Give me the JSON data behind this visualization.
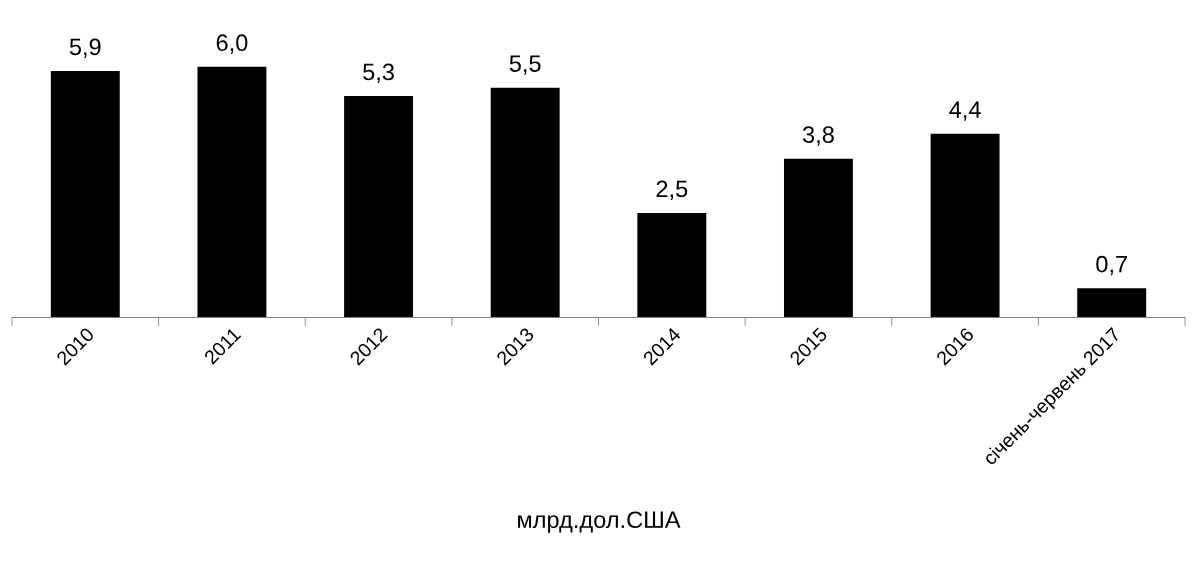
{
  "chart_data": {
    "type": "bar",
    "xlabel": "млрд.дол.США",
    "categories": [
      "2010",
      "2011",
      "2012",
      "2013",
      "2014",
      "2015",
      "2016",
      "січень-червень 2017"
    ],
    "values": [
      5.9,
      6.0,
      5.3,
      5.5,
      2.5,
      3.8,
      4.4,
      0.7
    ],
    "value_labels": [
      "5,9",
      "6,0",
      "5,3",
      "5,5",
      "2,5",
      "3,8",
      "4,4",
      "0,7"
    ],
    "color": "#000000",
    "grid": false,
    "tick_labels": "x"
  }
}
